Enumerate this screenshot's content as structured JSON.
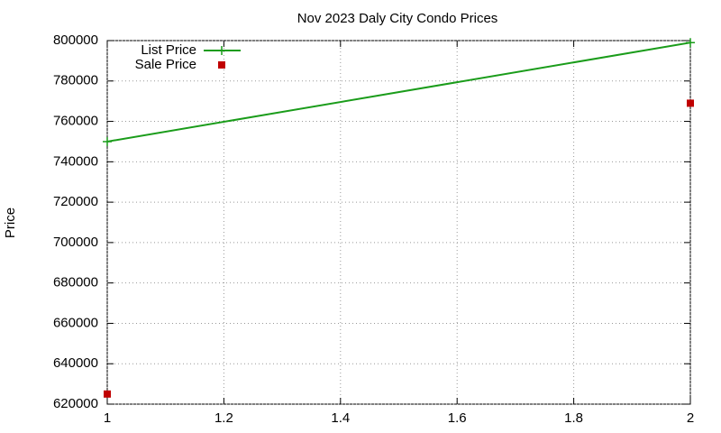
{
  "chart_data": {
    "type": "scatter",
    "title": "Nov 2023 Daly City Condo Prices",
    "y_label": "Price",
    "x": [
      1,
      2
    ],
    "series": [
      {
        "name": "List Price",
        "color": "#1a9c1a",
        "mode": "lines+markers",
        "values": [
          750000,
          799000
        ]
      },
      {
        "name": "Sale Price",
        "color": "#c00000",
        "mode": "markers",
        "values": [
          625000,
          769000
        ]
      }
    ],
    "xlim": [
      1,
      2
    ],
    "xticks": [
      1,
      1.2,
      1.4,
      1.6,
      1.8,
      2
    ],
    "ylim": [
      620000,
      800000
    ],
    "yticks": [
      620000,
      640000,
      660000,
      680000,
      700000,
      720000,
      740000,
      760000,
      780000,
      800000
    ],
    "grid": true,
    "legend": "top-left"
  }
}
